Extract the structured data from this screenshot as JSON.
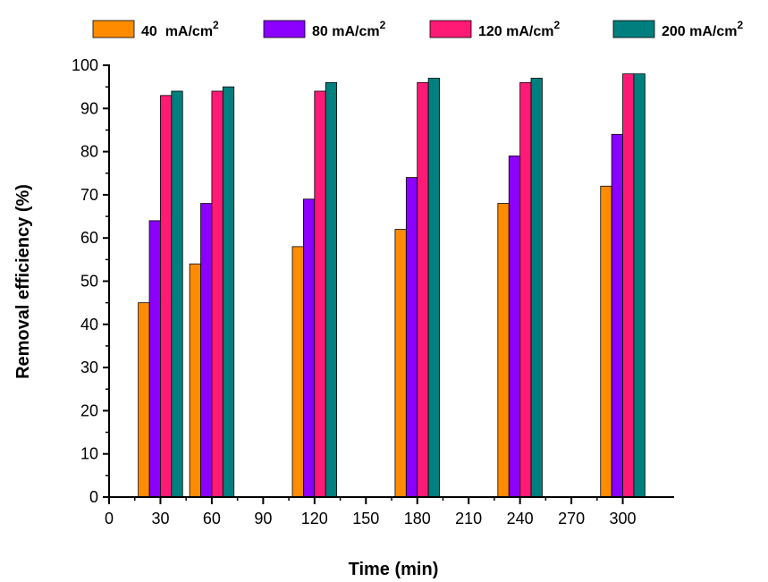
{
  "chart_data": {
    "type": "bar",
    "title": "",
    "xlabel": "Time (min)",
    "ylabel": "Removal efficiency (%)",
    "xlim": [
      0,
      330
    ],
    "ylim": [
      0,
      100
    ],
    "xticks": [
      0,
      30,
      60,
      90,
      120,
      150,
      180,
      210,
      240,
      270,
      300
    ],
    "yticks": [
      0,
      10,
      20,
      30,
      40,
      50,
      60,
      70,
      80,
      90,
      100
    ],
    "categories": [
      30,
      60,
      120,
      180,
      240,
      300
    ],
    "legend_position": "top",
    "grid": false,
    "series": [
      {
        "name": "40  mA/cm",
        "superscript": "2",
        "color": "#ff8c00",
        "values": [
          45,
          54,
          58,
          62,
          68,
          72
        ]
      },
      {
        "name": "80 mA/cm",
        "superscript": "2",
        "color": "#8b00ff",
        "values": [
          64,
          68,
          69,
          74,
          79,
          84
        ]
      },
      {
        "name": "120 mA/cm",
        "superscript": "2",
        "color": "#ff1a75",
        "values": [
          93,
          94,
          94,
          96,
          96,
          98
        ]
      },
      {
        "name": "200 mA/cm",
        "superscript": "2",
        "color": "#007f7f",
        "values": [
          94,
          95,
          96,
          97,
          97,
          98
        ]
      }
    ]
  }
}
